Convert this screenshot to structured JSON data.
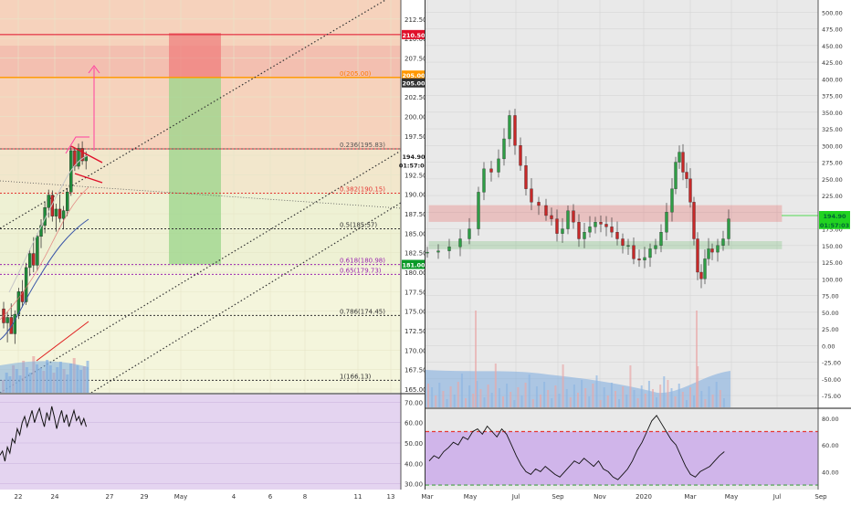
{
  "chart_data": [
    {
      "type": "candlestick",
      "panel": "left",
      "x_tick_labels": [
        "22",
        "24",
        "27",
        "29",
        "May",
        "4",
        "6",
        "8",
        "11",
        "13"
      ],
      "y_tick_labels": [
        "212.50",
        "210.00",
        "207.50",
        "205.00",
        "202.50",
        "200.00",
        "197.50",
        "195.00",
        "192.50",
        "190.00",
        "187.50",
        "185.00",
        "182.50",
        "180.00",
        "177.50",
        "175.00",
        "172.50",
        "170.00",
        "167.50",
        "165.00"
      ],
      "ylim": [
        165,
        214
      ],
      "price_badges": [
        {
          "label": "210.50",
          "value": 210.5,
          "color": "#e0102a"
        },
        {
          "label": "205.00",
          "value": 205.3,
          "color": "#ff9800"
        },
        {
          "label": "205.00",
          "value": 204.3,
          "color": "#333333"
        },
        {
          "label": "194.90",
          "value": 194.9,
          "color": "#ffffff"
        },
        {
          "label": "01:57:04",
          "value": 193.8,
          "color": "#ffffff"
        },
        {
          "label": "181.00",
          "value": 181.0,
          "color": "#0b9a28"
        }
      ],
      "fib_levels": [
        {
          "label": "0(205.00)",
          "value": 205.0,
          "color": "#ff9800"
        },
        {
          "label": "0.236(195.83)",
          "value": 195.83,
          "color": "#555555"
        },
        {
          "label": "0.382(190.15)",
          "value": 190.15,
          "color": "#e53935"
        },
        {
          "label": "0.5(185.57)",
          "value": 185.57,
          "color": "#333333"
        },
        {
          "label": "0.618(180.98)",
          "value": 180.98,
          "color": "#9c27b0"
        },
        {
          "label": "0.65(179.73)",
          "value": 179.73,
          "color": "#9c27b0"
        },
        {
          "label": "0.786(174.45)",
          "value": 174.45,
          "color": "#333333"
        },
        {
          "label": "1(166.13)",
          "value": 166.13,
          "color": "#333333"
        }
      ],
      "target_zone": {
        "stop": 210.5,
        "entry": 205.0,
        "target": 181.0
      },
      "rsi": {
        "y_tick_labels": [
          "70.00",
          "60.00",
          "50.00",
          "40.00",
          "30.00"
        ],
        "ylim": [
          28,
          72
        ]
      }
    },
    {
      "type": "candlestick",
      "panel": "right",
      "x_tick_labels": [
        "Mar",
        "May",
        "Jul",
        "Sep",
        "Nov",
        "2020",
        "Mar",
        "May",
        "Jul",
        "Sep"
      ],
      "y_tick_labels": [
        "500.00",
        "475.00",
        "450.00",
        "425.00",
        "400.00",
        "375.00",
        "350.00",
        "325.00",
        "300.00",
        "275.00",
        "250.00",
        "225.00",
        "200.00",
        "175.00",
        "150.00",
        "125.00",
        "100.00",
        "75.00",
        "50.00",
        "25.00",
        "0.00",
        "-25.00",
        "-50.00",
        "-75.00"
      ],
      "ylim": [
        -90,
        510
      ],
      "price_badges": [
        {
          "label": "194.90",
          "value": 194.9,
          "color": "#21d321"
        },
        {
          "label": "01:57:03",
          "value": 181.5,
          "color": "#21d321"
        }
      ],
      "zones": [
        {
          "name": "resistance",
          "from": 186,
          "to": 210,
          "color": "#e53935"
        },
        {
          "name": "support",
          "from": 145,
          "to": 156,
          "color": "#4caf50"
        }
      ],
      "rsi": {
        "y_tick_labels": [
          "80.00",
          "60.00",
          "40.00"
        ],
        "ylim": [
          28,
          84
        ],
        "upper_band": 70,
        "lower_band": 30
      }
    }
  ]
}
